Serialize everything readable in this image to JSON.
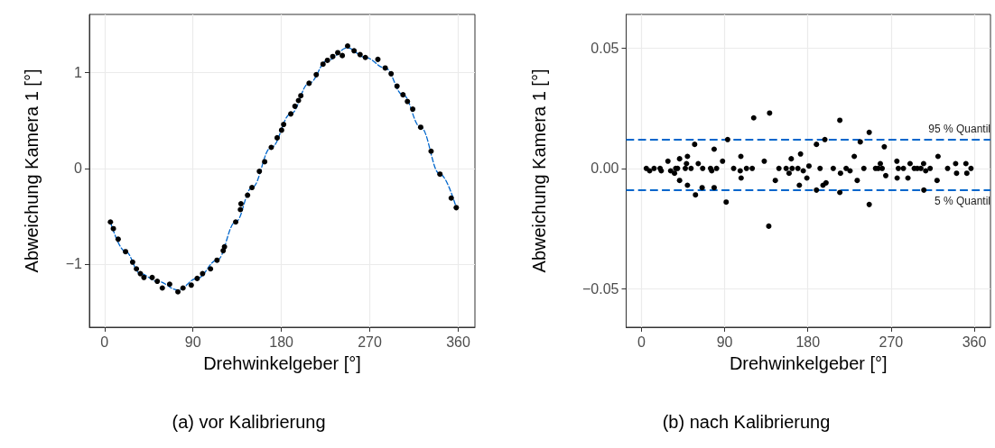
{
  "chart_data": [
    {
      "type": "scatter",
      "title": "(a) vor Kalibrierung",
      "xlabel": "Drehwinkelgeber [°]",
      "ylabel": "Abweichung Kamera 1 [°]",
      "xlim": [
        -15.4,
        377
      ],
      "ylim": [
        -1.66,
        1.61
      ],
      "xticks": [
        0,
        90,
        180,
        270,
        360
      ],
      "yticks": [
        {
          "value": -1,
          "label": "−1"
        },
        0,
        1
      ],
      "grid": true,
      "series": [
        {
          "color": "#000000",
          "marker": "circle",
          "x": [
            6.0,
            9.0,
            13.9,
            21.4,
            28.6,
            32.5,
            36.5,
            40.1,
            48.5,
            53.7,
            58.8,
            66.3,
            74.7,
            79.9,
            88.3,
            94.3,
            99.8,
            107.9,
            114.5,
            120.8,
            122.1,
            133.5,
            138.3,
            138.9,
            145.6,
            150.1,
            157.6,
            163.0,
            169.7,
            175.7,
            180.2,
            182.3,
            189.6,
            193.8,
            197.4,
            199.8,
            208.2,
            215.5,
            222.4,
            226.9,
            232.3,
            237.4,
            242.0,
            247.4,
            254.0,
            260.1,
            265.5,
            278.2,
            285.7,
            291.7,
            297.7,
            303.8,
            308.3,
            313.7,
            321.8,
            332.4,
            341.4,
            352.9,
            358.0
          ],
          "values": [
            -0.56,
            -0.63,
            -0.74,
            -0.87,
            -0.98,
            -1.05,
            -1.1,
            -1.14,
            -1.14,
            -1.18,
            -1.25,
            -1.21,
            -1.29,
            -1.25,
            -1.22,
            -1.15,
            -1.1,
            -1.05,
            -0.96,
            -0.86,
            -0.82,
            -0.56,
            -0.43,
            -0.37,
            -0.28,
            -0.2,
            -0.03,
            0.07,
            0.22,
            0.32,
            0.4,
            0.46,
            0.57,
            0.65,
            0.71,
            0.76,
            0.89,
            0.98,
            1.09,
            1.13,
            1.17,
            1.21,
            1.18,
            1.28,
            1.23,
            1.19,
            1.16,
            1.14,
            1.05,
            0.99,
            0.86,
            0.77,
            0.7,
            0.62,
            0.43,
            0.18,
            -0.06,
            -0.31,
            -0.41
          ]
        },
        {
          "type": "line",
          "color": "#0066cc",
          "marker": "none",
          "line_style": "dashed",
          "x": [
            6.0,
            21.4,
            36.5,
            53.7,
            74.7,
            94.3,
            114.5,
            133.5,
            150.1,
            169.7,
            189.6,
            208.2,
            226.9,
            247.4,
            265.5,
            285.7,
            303.8,
            321.8,
            341.4,
            358.0
          ],
          "values": [
            -0.56,
            -0.87,
            -1.1,
            -1.18,
            -1.27,
            -1.15,
            -0.96,
            -0.56,
            -0.2,
            0.22,
            0.57,
            0.89,
            1.13,
            1.26,
            1.16,
            1.05,
            0.77,
            0.43,
            -0.06,
            -0.41
          ]
        }
      ]
    },
    {
      "type": "scatter",
      "title": "(b) nach Kalibrierung",
      "xlabel": "Drehwinkelgeber [°]",
      "ylabel": "Abweichung Kamera 1 [°]",
      "xlim": [
        -16.6,
        377.6
      ],
      "ylim": [
        -0.066,
        0.064
      ],
      "xticks": [
        0,
        90,
        180,
        270,
        360
      ],
      "yticks": [
        {
          "value": -0.05,
          "label": "−0.05"
        },
        {
          "value": 0,
          "label": "0.00"
        },
        0.05
      ],
      "grid": true,
      "ref_lines": [
        {
          "axis": "y",
          "value": 0.012,
          "label": "95 % Quantil",
          "color": "#0066cc",
          "line_style": "dashed"
        },
        {
          "axis": "y",
          "value": -0.009,
          "label": "5 % Quantil",
          "color": "#0066cc",
          "line_style": "dashed"
        }
      ],
      "series": [
        {
          "color": "#000000",
          "marker": "circle",
          "x": [
            5.2,
            8.8,
            13.6,
            20.1,
            21.4,
            28.6,
            31.5,
            35.7,
            37.0,
            39.0,
            41.2,
            41.2,
            47.4,
            48.7,
            49.7,
            49.7,
            53.6,
            57.5,
            58.4,
            61.4,
            65.6,
            66.2,
            74.7,
            76.0,
            78.6,
            78.6,
            81.2,
            87.7,
            91.6,
            93.2,
            99.7,
            106.8,
            107.5,
            107.8,
            113.6,
            119.8,
            121.4,
            132.8,
            137.7,
            138.6,
            144.8,
            148.7,
            156.5,
            159.7,
            162.0,
            163.0,
            169.2,
            170.8,
            172.1,
            175.0,
            178.9,
            181.2,
            189.3,
            189.3,
            193.2,
            196.4,
            198.4,
            199.7,
            207.5,
            214.6,
            214.6,
            215.3,
            221.4,
            225.6,
            230.2,
            233.4,
            236.7,
            240.6,
            246.4,
            246.4,
            253.2,
            256.2,
            258.4,
            260.4,
            262.7,
            264.3,
            276.3,
            276.6,
            277.9,
            283.4,
            288.3,
            290.6,
            295.1,
            298.4,
            302.3,
            305.2,
            305.5,
            307.5,
            312.3,
            319.8,
            320.8,
            331.2,
            339.9,
            340.9,
            351.0,
            352.0,
            356.5
          ],
          "values": [
            0,
            -0.001,
            0,
            0,
            -0.001,
            0.003,
            -0.001,
            -0.002,
            0,
            0,
            0.004,
            -0.005,
            0,
            0.002,
            0.005,
            -0.007,
            0,
            0.01,
            -0.011,
            0.002,
            -0.008,
            0,
            0,
            -0.001,
            0.008,
            -0.008,
            0,
            0.003,
            -0.014,
            0.012,
            0,
            -0.001,
            0.005,
            -0.004,
            0,
            0,
            0.021,
            0.003,
            -0.024,
            0.023,
            -0.005,
            0,
            0,
            -0.002,
            0.004,
            0,
            0,
            -0.007,
            0.006,
            -0.001,
            -0.004,
            0.001,
            0.01,
            -0.009,
            0,
            -0.007,
            0.012,
            -0.006,
            0,
            0.02,
            -0.01,
            -0.002,
            0,
            -0.001,
            0.005,
            -0.005,
            0.011,
            0,
            0.015,
            -0.015,
            0,
            0,
            0.002,
            0,
            0.009,
            -0.003,
            0.003,
            -0.004,
            0,
            0,
            -0.004,
            0.002,
            0,
            0,
            0,
            0.002,
            -0.009,
            -0.001,
            0,
            -0.005,
            0.005,
            0,
            0.002,
            -0.002,
            0.002,
            -0.002,
            0
          ]
        }
      ]
    }
  ]
}
